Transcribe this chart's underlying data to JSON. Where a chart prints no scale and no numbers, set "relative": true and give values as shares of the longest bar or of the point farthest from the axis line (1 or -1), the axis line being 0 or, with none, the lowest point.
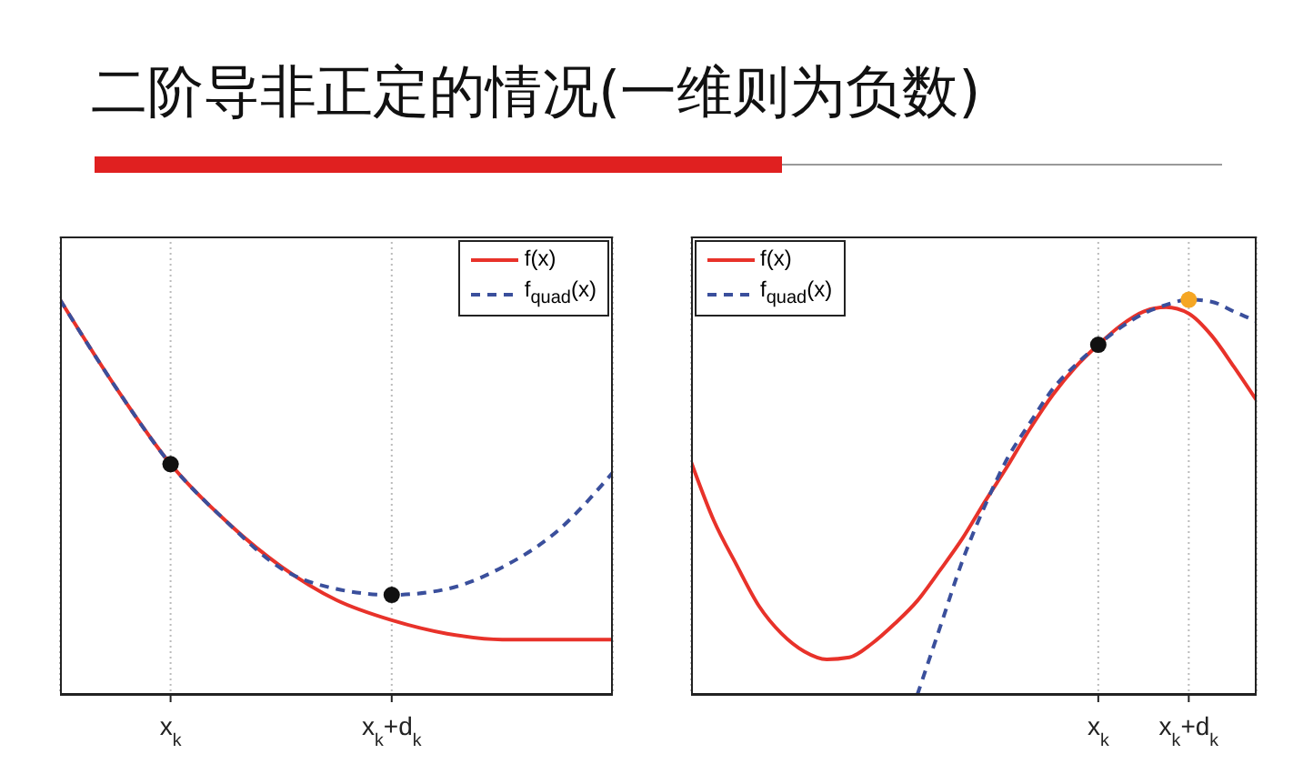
{
  "chart_data": [
    {
      "type": "line",
      "title": "二阶导非正定的情况(一维则为负数)",
      "relative": true,
      "legend": "top right",
      "grid": "x",
      "categories": [
        null,
        null,
        "x$_{k}$",
        null,
        null,
        null,
        "x$_{k}$+d$_{k}$",
        null,
        null,
        null,
        null
      ],
      "series": [
        {
          "name": "f(x)",
          "color": "#e8322a",
          "line_style": "solid",
          "values": [
            1.0,
            0.78,
            0.584,
            0.44,
            0.325,
            0.24,
            0.189,
            0.155,
            0.14,
            0.14,
            0.14
          ]
        },
        {
          "name": "f$_{quad}$(x)",
          "color": "#3a4f9c",
          "line_style": "dashed",
          "values": [
            1.0,
            0.78,
            0.584,
            0.44,
            0.32,
            0.268,
            0.253,
            0.268,
            0.323,
            0.415,
            0.563
          ]
        },
        {
          "type": "scatter",
          "marker": "circle",
          "colors": [
            null,
            null,
            "#111111",
            null,
            null,
            null,
            "#111111",
            null,
            null,
            null,
            null
          ],
          "values": [
            null,
            null,
            0.584,
            null,
            null,
            null,
            0.253,
            null,
            null,
            null,
            null
          ]
        }
      ]
    },
    {
      "type": "line",
      "relative": true,
      "legend": "top left",
      "grid": "x",
      "categories": [
        null,
        null,
        null,
        null,
        null,
        null,
        null,
        null,
        null,
        null,
        null,
        null,
        null,
        null,
        null,
        null,
        null,
        null,
        "x$_{k}$",
        null,
        null,
        null,
        "x$_{k}$+d$_{k}$",
        null,
        null,
        null
      ],
      "series": [
        {
          "name": "f(x)",
          "color": "#e8322a",
          "line_style": "solid",
          "values": [
            0.59,
            0.442,
            0.33,
            0.225,
            0.155,
            0.11,
            0.09,
            0.095,
            0.13,
            0.18,
            0.238,
            0.315,
            0.396,
            0.49,
            0.58,
            0.675,
            0.76,
            0.83,
            0.886,
            0.935,
            0.97,
            0.981,
            0.965,
            0.91,
            0.83,
            0.745
          ]
        },
        {
          "name": "f$_{quad}$(x)",
          "color": "#3a4f9c",
          "line_style": "dashed",
          "values": [
            null,
            null,
            null,
            null,
            null,
            null,
            null,
            null,
            null,
            null,
            0,
            0.17,
            0.34,
            0.48,
            0.6,
            0.69,
            0.775,
            0.835,
            0.886,
            0.93,
            0.965,
            0.987,
            1.0,
            0.995,
            0.97,
            0.945
          ]
        },
        {
          "type": "scatter",
          "marker": "circle",
          "colors": [
            null,
            null,
            null,
            null,
            null,
            null,
            null,
            null,
            null,
            null,
            null,
            null,
            null,
            null,
            null,
            null,
            null,
            null,
            "#111111",
            null,
            null,
            null,
            "#f5a623",
            null,
            null,
            null
          ],
          "values": [
            null,
            null,
            null,
            null,
            null,
            null,
            null,
            null,
            null,
            null,
            null,
            null,
            null,
            null,
            null,
            null,
            null,
            null,
            0.886,
            null,
            null,
            null,
            1.0,
            null,
            null,
            null
          ]
        }
      ]
    }
  ]
}
